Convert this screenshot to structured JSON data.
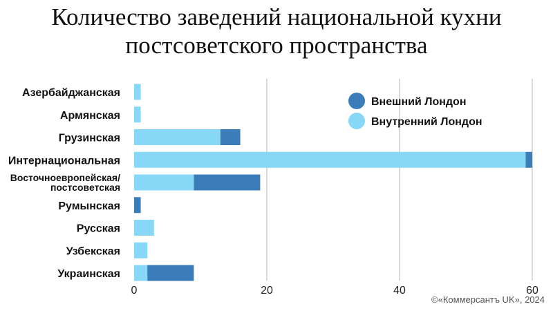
{
  "title": {
    "line1": "Количество заведений национальной кухни",
    "line2": "постсоветского пространства"
  },
  "credit": "©«Коммерсантъ UK», 2024",
  "colors": {
    "inner": "#87d8f7",
    "outer": "#3b7cba",
    "grid": "#b5b5b5",
    "text": "#111111"
  },
  "chart_data": {
    "type": "bar",
    "orientation": "horizontal",
    "stacked": true,
    "categories": [
      "Азербайджанская",
      "Армянская",
      "Грузинская",
      "Интернациональная",
      "Восточноевропейская/\nпостсоветская",
      "Румынская",
      "Русская",
      "Узбекская",
      "Украинская"
    ],
    "series": [
      {
        "name": "Внутренний Лондон",
        "color": "#87d8f7",
        "values": [
          1,
          1,
          13,
          59,
          9,
          0,
          3,
          2,
          2
        ]
      },
      {
        "name": "Внешний Лондон",
        "color": "#3b7cba",
        "values": [
          0,
          0,
          3,
          1,
          10,
          1,
          0,
          0,
          7
        ]
      }
    ],
    "legend": {
      "position": "top-right",
      "order": [
        "Внешний Лондон",
        "Внутренний Лондон"
      ]
    },
    "xlim": [
      0,
      60
    ],
    "xticks": [
      0,
      20,
      40,
      60
    ],
    "grid": true,
    "xlabel": "",
    "ylabel": ""
  }
}
